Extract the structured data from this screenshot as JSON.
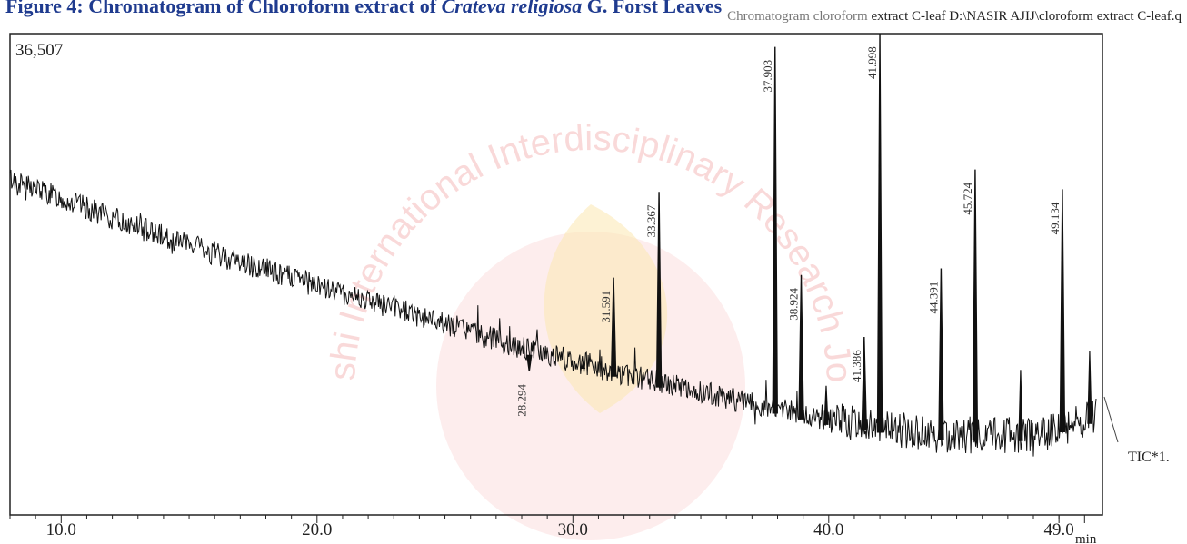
{
  "figure": {
    "title_prefix": "Figure 4: Chromatogram of Chloroform extract of ",
    "title_italic": "Crateva religiosa",
    "title_suffix": " G. Forst Leaves"
  },
  "header": {
    "light": "Chromatogram cloroform ",
    "dark": "extract C-leaf D:\\NASIR AJIJ\\cloroform extract C-leaf.q"
  },
  "watermark": {
    "text": "Aayushi International Interdisciplinary Research Journal",
    "color": "#f7c9c9"
  },
  "chart_data": {
    "type": "line",
    "title": "",
    "xlabel": "min",
    "ylabel": "",
    "xlim": [
      8.0,
      50.7
    ],
    "ylim": [
      0,
      36507
    ],
    "y_max_label": "36,507",
    "x_tick_values": [
      10.0,
      20.0,
      30.0,
      40.0,
      49.0
    ],
    "x_tick_labels": [
      "10.0",
      "20.0",
      "30.0",
      "40.0",
      "49.0"
    ],
    "trace_label": "TIC*1.",
    "baseline": {
      "x": [
        8.0,
        12.0,
        16.0,
        20.0,
        24.0,
        28.0,
        32.0,
        36.0,
        40.0,
        44.0,
        48.0,
        50.5
      ],
      "y": [
        25500,
        22500,
        19800,
        17400,
        15100,
        12700,
        10700,
        8900,
        7200,
        6100,
        6000,
        7500
      ]
    },
    "labeled_peaks": [
      {
        "rt": 28.294,
        "label": "28.294",
        "height": 10900
      },
      {
        "rt": 31.591,
        "label": "31.591",
        "height": 18000
      },
      {
        "rt": 33.367,
        "label": "33.367",
        "height": 24500
      },
      {
        "rt": 37.903,
        "label": "37.903",
        "height": 35500
      },
      {
        "rt": 38.924,
        "label": "38.924",
        "height": 18200
      },
      {
        "rt": 41.386,
        "label": "41.386",
        "height": 13500
      },
      {
        "rt": 41.998,
        "label": "41.998",
        "height": 36507
      },
      {
        "rt": 44.391,
        "label": "44.391",
        "height": 18700
      },
      {
        "rt": 45.724,
        "label": "45.724",
        "height": 26200
      },
      {
        "rt": 49.134,
        "label": "49.134",
        "height": 24700
      }
    ],
    "unlabeled_peaks": [
      {
        "rt": 30.4,
        "height": 11500
      },
      {
        "rt": 39.9,
        "height": 9800
      },
      {
        "rt": 47.5,
        "height": 11000
      },
      {
        "rt": 50.2,
        "height": 12400
      }
    ],
    "colors": {
      "trace": "#111111",
      "axes": "#222222",
      "title": "#1f3b8f"
    }
  }
}
